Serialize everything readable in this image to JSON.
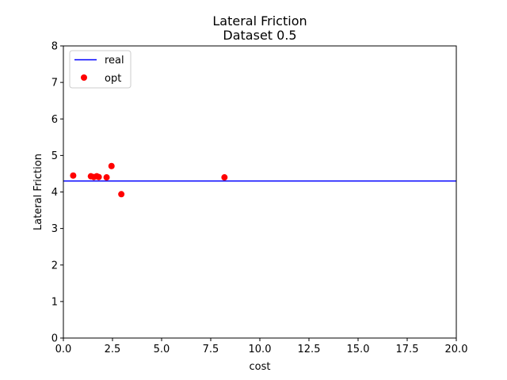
{
  "chart_data": {
    "type": "scatter",
    "title": [
      "Lateral Friction",
      "Dataset 0.5"
    ],
    "xlabel": "cost",
    "ylabel": "Lateral Friction",
    "xlim": [
      0,
      20
    ],
    "ylim": [
      0,
      8
    ],
    "xticks": [
      0,
      2.5,
      5,
      7.5,
      10,
      12.5,
      15,
      17.5,
      20
    ],
    "xtick_labels": [
      "0.0",
      "2.5",
      "5.0",
      "7.5",
      "10.0",
      "12.5",
      "15.0",
      "17.5",
      "20.0"
    ],
    "yticks": [
      0,
      1,
      2,
      3,
      4,
      5,
      6,
      7,
      8
    ],
    "ytick_labels": [
      "0",
      "1",
      "2",
      "3",
      "4",
      "5",
      "6",
      "7",
      "8"
    ],
    "grid": false,
    "legend_position": "top-left",
    "series": [
      {
        "name": "real",
        "kind": "hline",
        "y": 4.3,
        "color": "#0000ff"
      },
      {
        "name": "opt",
        "kind": "scatter",
        "color": "#ff0000",
        "points": [
          {
            "x": 0.5,
            "y": 4.45
          },
          {
            "x": 1.4,
            "y": 4.43
          },
          {
            "x": 1.55,
            "y": 4.41
          },
          {
            "x": 1.7,
            "y": 4.43
          },
          {
            "x": 1.8,
            "y": 4.41
          },
          {
            "x": 2.2,
            "y": 4.4
          },
          {
            "x": 2.45,
            "y": 4.71
          },
          {
            "x": 2.95,
            "y": 3.94
          },
          {
            "x": 8.2,
            "y": 4.4
          }
        ]
      }
    ]
  }
}
